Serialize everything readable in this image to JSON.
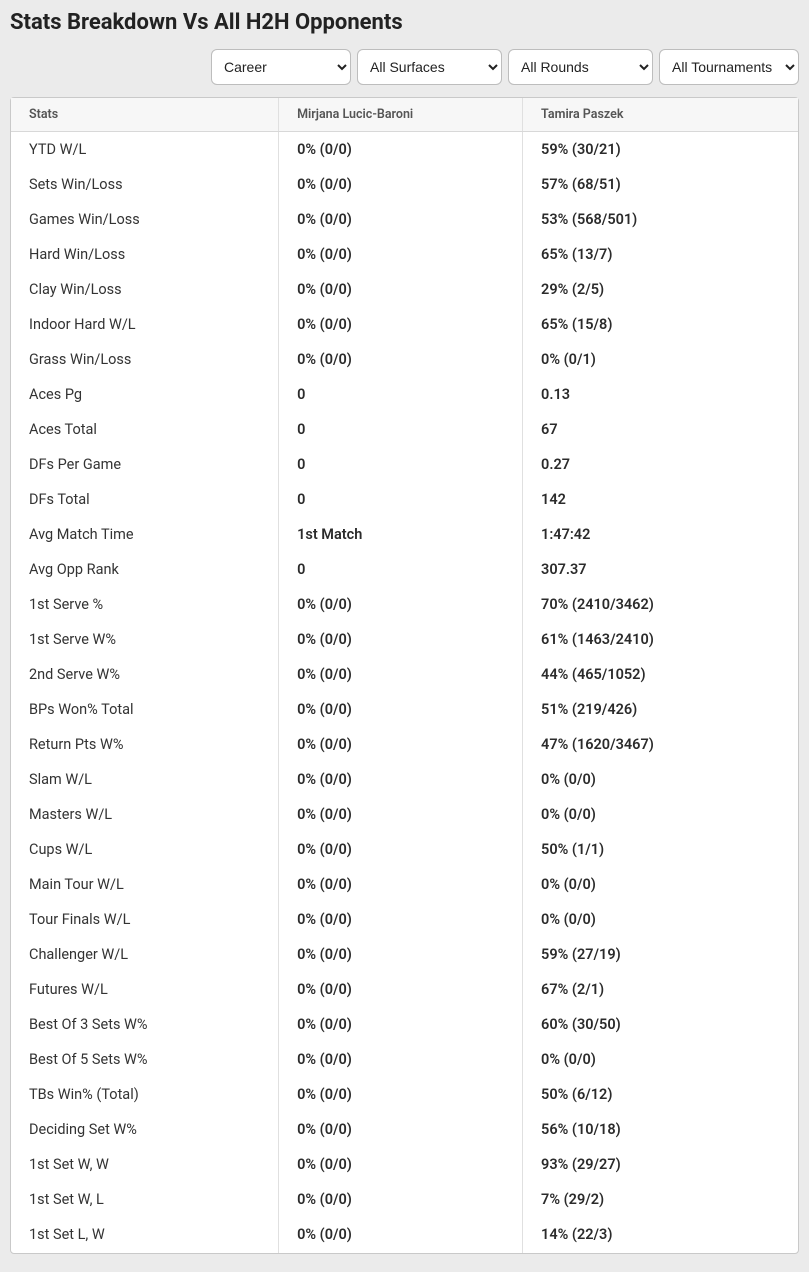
{
  "title": "Stats Breakdown Vs All H2H Opponents",
  "filters": {
    "career": {
      "value": "Career"
    },
    "surfaces": {
      "value": "All Surfaces"
    },
    "rounds": {
      "value": "All Rounds"
    },
    "tournaments": {
      "value": "All Tournaments"
    }
  },
  "table": {
    "columns": [
      "Stats",
      "Mirjana Lucic-Baroni",
      "Tamira Paszek"
    ],
    "rows": [
      [
        "YTD W/L",
        "0% (0/0)",
        "59% (30/21)"
      ],
      [
        "Sets Win/Loss",
        "0% (0/0)",
        "57% (68/51)"
      ],
      [
        "Games Win/Loss",
        "0% (0/0)",
        "53% (568/501)"
      ],
      [
        "Hard Win/Loss",
        "0% (0/0)",
        "65% (13/7)"
      ],
      [
        "Clay Win/Loss",
        "0% (0/0)",
        "29% (2/5)"
      ],
      [
        "Indoor Hard W/L",
        "0% (0/0)",
        "65% (15/8)"
      ],
      [
        "Grass Win/Loss",
        "0% (0/0)",
        "0% (0/1)"
      ],
      [
        "Aces Pg",
        "0",
        "0.13"
      ],
      [
        "Aces Total",
        "0",
        "67"
      ],
      [
        "DFs Per Game",
        "0",
        "0.27"
      ],
      [
        "DFs Total",
        "0",
        "142"
      ],
      [
        "Avg Match Time",
        "1st Match",
        "1:47:42"
      ],
      [
        "Avg Opp Rank",
        "0",
        "307.37"
      ],
      [
        "1st Serve %",
        "0% (0/0)",
        "70% (2410/3462)"
      ],
      [
        "1st Serve W%",
        "0% (0/0)",
        "61% (1463/2410)"
      ],
      [
        "2nd Serve W%",
        "0% (0/0)",
        "44% (465/1052)"
      ],
      [
        "BPs Won% Total",
        "0% (0/0)",
        "51% (219/426)"
      ],
      [
        "Return Pts W%",
        "0% (0/0)",
        "47% (1620/3467)"
      ],
      [
        "Slam W/L",
        "0% (0/0)",
        "0% (0/0)"
      ],
      [
        "Masters W/L",
        "0% (0/0)",
        "0% (0/0)"
      ],
      [
        "Cups W/L",
        "0% (0/0)",
        "50% (1/1)"
      ],
      [
        "Main Tour W/L",
        "0% (0/0)",
        "0% (0/0)"
      ],
      [
        "Tour Finals W/L",
        "0% (0/0)",
        "0% (0/0)"
      ],
      [
        "Challenger W/L",
        "0% (0/0)",
        "59% (27/19)"
      ],
      [
        "Futures W/L",
        "0% (0/0)",
        "67% (2/1)"
      ],
      [
        "Best Of 3 Sets W%",
        "0% (0/0)",
        "60% (30/50)"
      ],
      [
        "Best Of 5 Sets W%",
        "0% (0/0)",
        "0% (0/0)"
      ],
      [
        "TBs Win% (Total)",
        "0% (0/0)",
        "50% (6/12)"
      ],
      [
        "Deciding Set W%",
        "0% (0/0)",
        "56% (10/18)"
      ],
      [
        "1st Set W, W",
        "0% (0/0)",
        "93% (29/27)"
      ],
      [
        "1st Set W, L",
        "0% (0/0)",
        "7% (29/2)"
      ],
      [
        "1st Set L, W",
        "0% (0/0)",
        "14% (22/3)"
      ]
    ],
    "header_bg": "#f7f7f7",
    "border_color": "#e0e0e0",
    "row_font_size": 14.5,
    "header_font_size": 12.5
  },
  "page_bg": "#ebebeb"
}
